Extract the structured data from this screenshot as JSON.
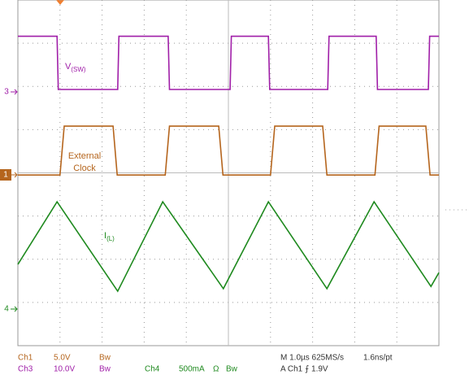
{
  "chart_data": {
    "type": "line",
    "xlim": [
      0,
      10
    ],
    "ylim": [
      0,
      8
    ],
    "xticks": [
      0,
      1,
      2,
      3,
      4,
      5,
      6,
      7,
      8,
      9,
      10
    ],
    "yticks": [
      0,
      1,
      2,
      3,
      4,
      5,
      6,
      7,
      8
    ],
    "grid": true,
    "series": [
      {
        "name": "V",
        "subscript": "(SW)",
        "channel_marker": "3",
        "color": "#a01fa8",
        "x": [
          0,
          0.93,
          0.96,
          2.37,
          2.4,
          3.57,
          3.6,
          5.04,
          5.07,
          5.95,
          5.98,
          7.36,
          7.39,
          8.51,
          8.54,
          9.75,
          9.78,
          10
        ],
        "values": [
          7.16,
          7.16,
          5.93,
          5.93,
          7.16,
          7.16,
          5.93,
          5.93,
          7.16,
          7.16,
          5.93,
          5.93,
          7.16,
          7.16,
          5.93,
          5.93,
          7.16,
          7.16
        ]
      },
      {
        "name": "External",
        "name_line2": "Clock",
        "channel_marker": "1",
        "color": "#b5651d",
        "x": [
          0,
          1.0,
          1.1,
          2.26,
          2.36,
          3.5,
          3.6,
          4.77,
          4.87,
          6.0,
          6.1,
          7.24,
          7.34,
          8.48,
          8.58,
          9.69,
          9.79,
          10
        ],
        "values": [
          3.95,
          3.95,
          5.08,
          5.08,
          3.95,
          3.95,
          5.08,
          5.08,
          3.95,
          3.95,
          5.08,
          5.08,
          3.95,
          3.95,
          5.08,
          5.08,
          3.95,
          3.95
        ]
      },
      {
        "name": "I",
        "subscript": "(L)",
        "channel_marker": "4",
        "color": "#1f8a1f",
        "x": [
          0,
          0.93,
          2.37,
          3.44,
          4.88,
          5.95,
          7.34,
          8.46,
          9.81,
          10
        ],
        "values": [
          1.88,
          3.33,
          1.26,
          3.33,
          1.32,
          3.33,
          1.32,
          3.33,
          1.37,
          1.69
        ]
      }
    ],
    "readout": [
      [
        {
          "text": "Ch1",
          "color": "#b5651d"
        },
        {
          "text": "5.0V",
          "color": "#b5651d"
        },
        {
          "text": "Bw",
          "color": "#b5651d"
        },
        {
          "text": "M 1.0µs 625MS/s",
          "color": "#333333"
        },
        {
          "text": "1.6ns/pt",
          "color": "#333333"
        }
      ],
      [
        {
          "text": "Ch3",
          "color": "#a01fa8"
        },
        {
          "text": "10.0V",
          "color": "#a01fa8"
        },
        {
          "text": "Bw",
          "color": "#a01fa8"
        },
        {
          "text": "Ch4",
          "color": "#1f8a1f"
        },
        {
          "text": "500mA",
          "color": "#1f8a1f"
        },
        {
          "text": "Ω",
          "color": "#1f8a1f"
        },
        {
          "text": "Bw",
          "color": "#1f8a1f"
        },
        {
          "text": "A  Ch1  ⨍  1.9V",
          "color": "#333333"
        }
      ]
    ]
  }
}
